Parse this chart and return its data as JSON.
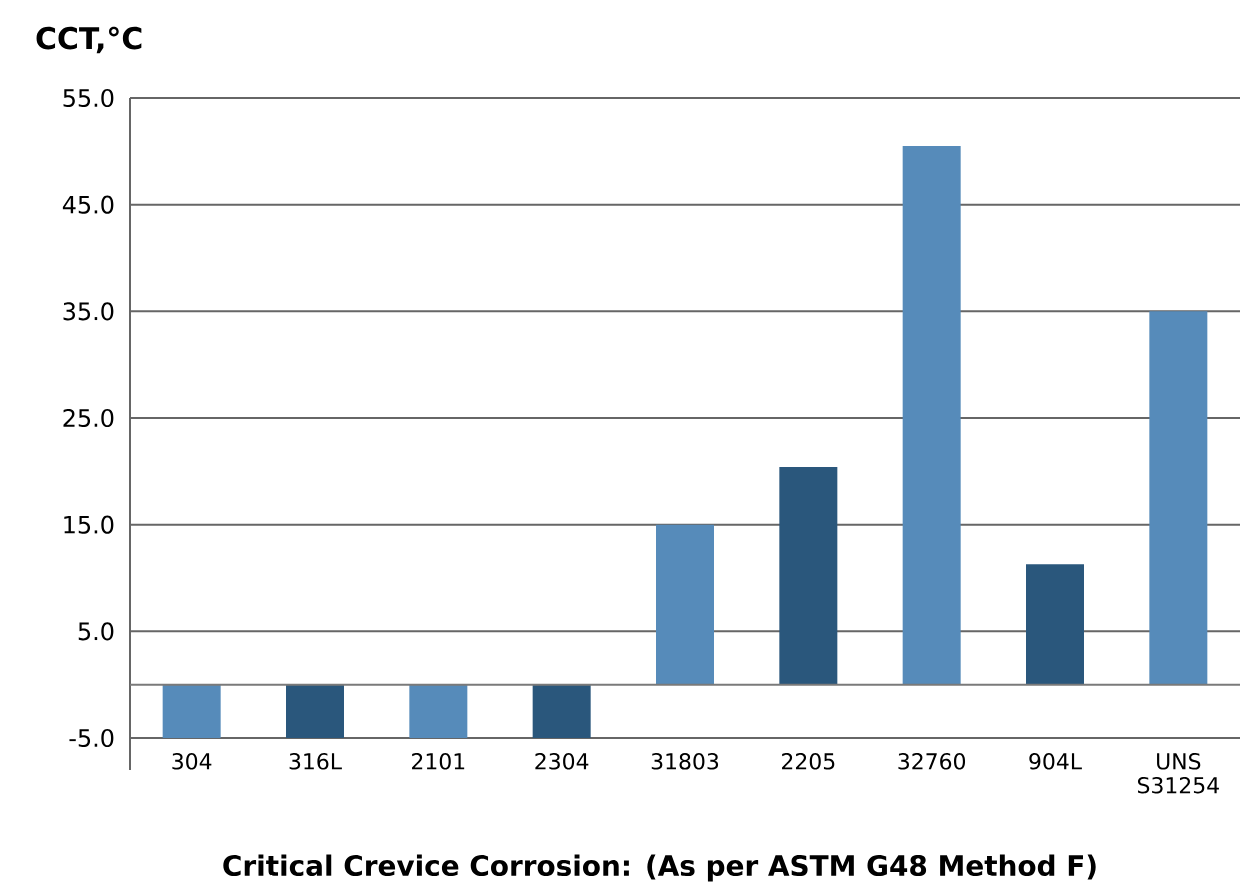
{
  "chart_data": {
    "type": "bar",
    "ylabel": "CCT,°C",
    "xlabel": "Critical Crevice Corrosion: (As per ASTM G48 Method F)",
    "categories": [
      "304",
      "316L",
      "2101",
      "2304",
      "31803",
      "2205",
      "32760",
      "904L",
      "UNS S31254"
    ],
    "values": [
      -5,
      -5,
      -5,
      -5,
      15,
      20.4,
      50.5,
      11.3,
      35
    ],
    "colors": [
      "#568bba",
      "#2a577c",
      "#568bba",
      "#2a577c",
      "#568bba",
      "#2a577c",
      "#568bba",
      "#2a577c",
      "#568bba"
    ],
    "ylim": [
      -8,
      55
    ],
    "yticks": [
      {
        "value": 55,
        "label": "55.0"
      },
      {
        "value": 45,
        "label": "45.0"
      },
      {
        "value": 35,
        "label": "35.0"
      },
      {
        "value": 25,
        "label": "25.0"
      },
      {
        "value": 15,
        "label": "15.0"
      },
      {
        "value": 5,
        "label": "5.0"
      },
      {
        "value": -5,
        "label": "-5.0"
      }
    ],
    "grid": "y",
    "ref_lines": [
      {
        "axis": "y",
        "value": 0,
        "color": "#7a7a7a"
      }
    ]
  }
}
